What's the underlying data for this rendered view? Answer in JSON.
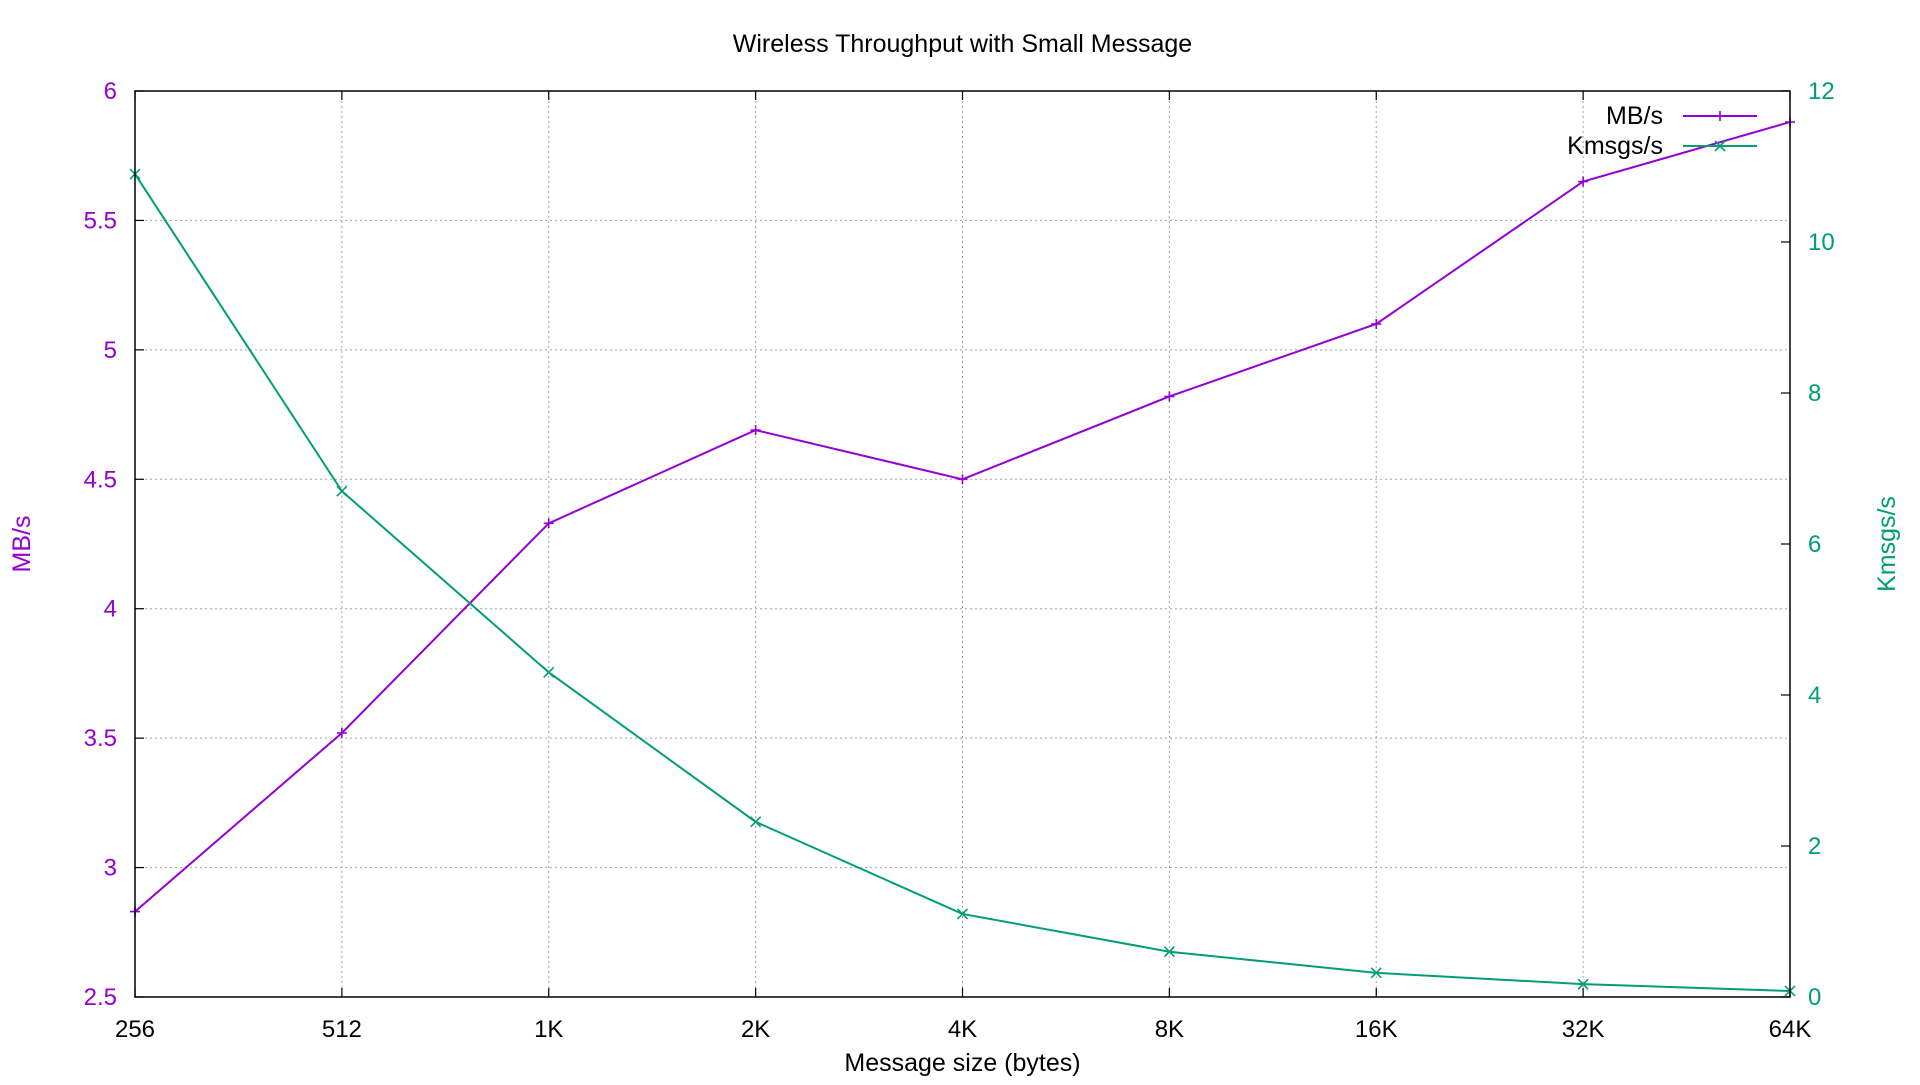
{
  "chart_data": {
    "type": "line",
    "title": "Wireless Throughput with Small Message",
    "xlabel": "Message size (bytes)",
    "ylabel_left": "MB/s",
    "ylabel_right": "Kmsgs/s",
    "categories": [
      "256",
      "512",
      "1K",
      "2K",
      "4K",
      "8K",
      "16K",
      "32K",
      "64K"
    ],
    "y_left": {
      "min": 2.5,
      "max": 6,
      "ticks": [
        2.5,
        3,
        3.5,
        4,
        4.5,
        5,
        5.5,
        6
      ],
      "tick_labels": [
        "2.5",
        "3",
        "3.5",
        "4",
        "4.5",
        "5",
        "5.5",
        "6"
      ],
      "color": "#9400D3"
    },
    "y_right": {
      "min": 0,
      "max": 12,
      "ticks": [
        0,
        2,
        4,
        6,
        8,
        10,
        12
      ],
      "tick_labels": [
        "0",
        "2",
        "4",
        "6",
        "8",
        "10",
        "12"
      ],
      "color": "#009E73"
    },
    "grid": true,
    "legend_position": "top-right",
    "series": [
      {
        "name": "MB/s",
        "axis": "left",
        "color": "#9400D3",
        "marker": "plus",
        "values": [
          2.83,
          3.52,
          4.33,
          4.69,
          4.5,
          4.82,
          5.1,
          5.65,
          5.88
        ]
      },
      {
        "name": "Kmsgs/s",
        "axis": "right",
        "color": "#009E73",
        "marker": "cross",
        "values": [
          10.9,
          6.7,
          4.3,
          2.32,
          1.1,
          0.6,
          0.32,
          0.17,
          0.08
        ]
      }
    ]
  }
}
